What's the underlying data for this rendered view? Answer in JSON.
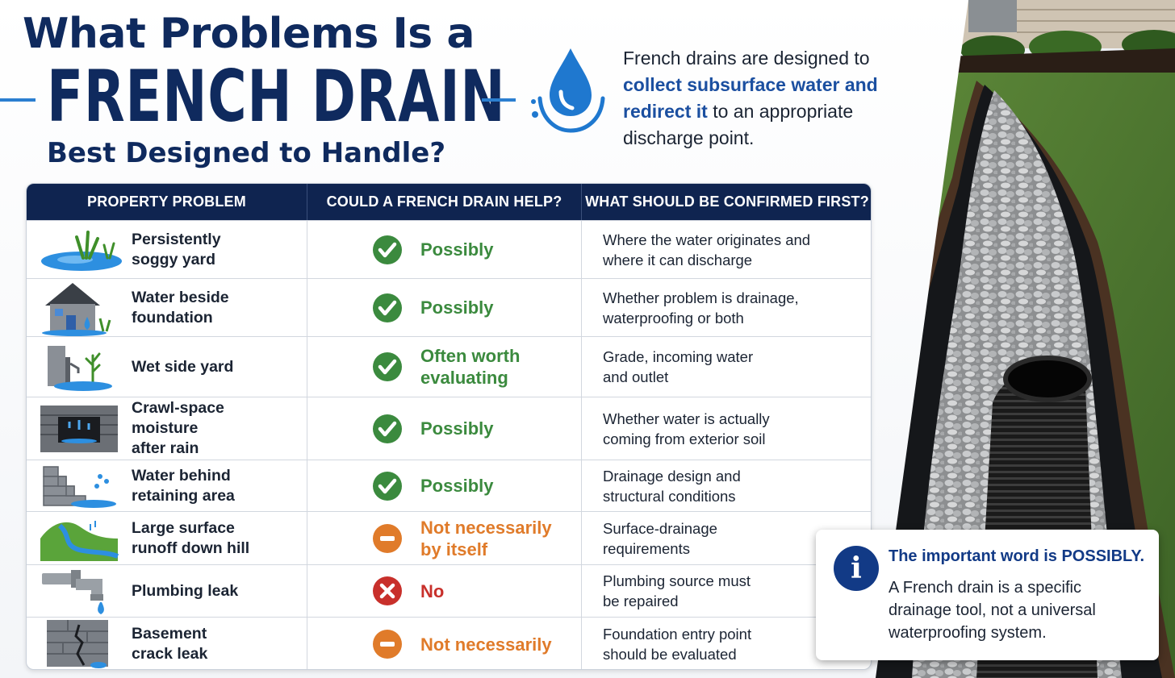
{
  "header": {
    "line1": "What Problems Is a",
    "line2": "FRENCH DRAIN",
    "line3": "Best Designed to Handle?"
  },
  "intro": {
    "before": "French drains are designed to ",
    "emphasis": "collect subsurface water and redirect it",
    "after": " to an appropriate discharge point."
  },
  "table": {
    "headers": [
      "PROPERTY PROBLEM",
      "COULD A FRENCH DRAIN HELP?",
      "WHAT SHOULD BE CONFIRMED FIRST?"
    ],
    "rows": [
      {
        "problem": "Persistently\nsoggy yard",
        "icon": "soggy-yard-icon",
        "status": "check",
        "answer": "Possibly",
        "confirm": "Where the water originates and\nwhere it can discharge"
      },
      {
        "problem": "Water beside\nfoundation",
        "icon": "house-icon",
        "status": "check",
        "answer": "Possibly",
        "confirm": "Whether problem is drainage,\nwaterproofing or both"
      },
      {
        "problem": "Wet side yard",
        "icon": "side-yard-icon",
        "status": "check",
        "answer": "Often worth\nevaluating",
        "confirm": "Grade, incoming water\nand outlet"
      },
      {
        "problem": "Crawl-space\nmoisture\nafter rain",
        "icon": "crawl-space-icon",
        "status": "check",
        "answer": "Possibly",
        "confirm": "Whether water is actually\ncoming from exterior soil"
      },
      {
        "problem": "Water behind\nretaining area",
        "icon": "retaining-wall-icon",
        "status": "check",
        "answer": "Possibly",
        "confirm": "Drainage design and\nstructural conditions"
      },
      {
        "problem": "Large surface\nrunoff down hill",
        "icon": "hill-runoff-icon",
        "status": "minus",
        "answer": "Not necessarily\nby itself",
        "confirm": "Surface-drainage\nrequirements"
      },
      {
        "problem": "Plumbing leak",
        "icon": "pipe-leak-icon",
        "status": "cross",
        "answer": "No",
        "confirm": "Plumbing source must\nbe repaired"
      },
      {
        "problem": "Basement\ncrack leak",
        "icon": "cracked-wall-icon",
        "status": "minus",
        "answer": "Not necessarily",
        "confirm": "Foundation entry point\nshould be evaluated"
      }
    ]
  },
  "info": {
    "title": "The important word is POSSIBLY.",
    "body": "A French drain is a specific drainage tool, not a universal waterproofing system."
  },
  "colors": {
    "navy": "#0f2a5e",
    "accent_blue": "#2b7fd0",
    "check_green": "#3b8a3e",
    "minus_orange": "#e07b2a",
    "cross_red": "#c8302b"
  }
}
